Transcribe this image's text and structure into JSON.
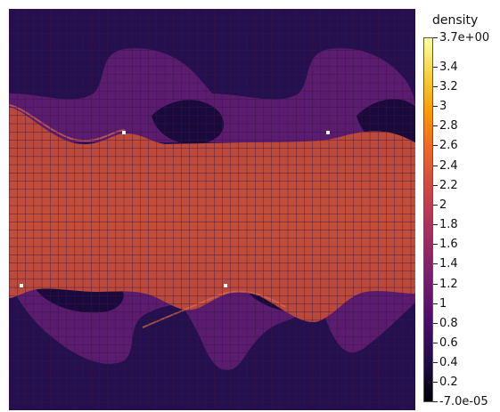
{
  "legend": {
    "title": "density",
    "ticks": [
      {
        "label": "3.7e+00",
        "value": 3.7
      },
      {
        "label": "3.4",
        "value": 3.4
      },
      {
        "label": "3.2",
        "value": 3.2
      },
      {
        "label": "3",
        "value": 3.0
      },
      {
        "label": "2.8",
        "value": 2.8
      },
      {
        "label": "2.6",
        "value": 2.6
      },
      {
        "label": "2.4",
        "value": 2.4
      },
      {
        "label": "2.2",
        "value": 2.2
      },
      {
        "label": "2",
        "value": 2.0
      },
      {
        "label": "1.8",
        "value": 1.8
      },
      {
        "label": "1.6",
        "value": 1.6
      },
      {
        "label": "1.4",
        "value": 1.4
      },
      {
        "label": "1.2",
        "value": 1.2
      },
      {
        "label": "1",
        "value": 1.0
      },
      {
        "label": "0.8",
        "value": 0.8
      },
      {
        "label": "0.6",
        "value": 0.6
      },
      {
        "label": "0.4",
        "value": 0.4
      },
      {
        "label": "0.2",
        "value": 0.2
      },
      {
        "label": "-7.0e-05",
        "value": 0.0
      }
    ],
    "range": [
      -7e-05,
      3.7
    ],
    "colormap": "inferno"
  },
  "colors": {
    "background": "#ffffff",
    "low_density": "#2c0f55",
    "mid_density": "#7a2a73",
    "high_density": "#c64a3f",
    "grid_line": "#3a1340",
    "marker": "#ffffff"
  }
}
